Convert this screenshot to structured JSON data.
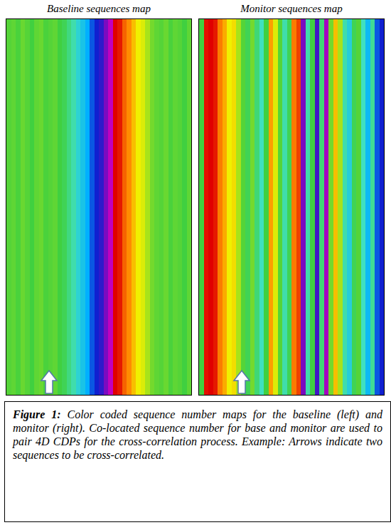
{
  "chart_data": [
    {
      "type": "heatmap",
      "title": "Baseline sequences map",
      "tick_labels": false,
      "zlim": [
        0,
        100
      ],
      "cells": [
        48,
        47,
        49,
        46,
        48,
        50,
        47,
        46,
        49,
        48,
        47,
        50,
        52,
        56,
        60,
        65,
        68,
        72,
        80,
        85,
        88,
        95,
        100,
        0,
        3,
        12,
        17,
        25,
        33,
        35,
        40,
        45,
        47,
        48,
        46,
        49,
        47,
        48,
        50,
        47
      ]
    },
    {
      "type": "heatmap",
      "title": "Monitor sequences map",
      "tick_labels": false,
      "zlim": [
        0,
        100
      ],
      "cells": [
        50,
        2,
        0,
        3,
        15,
        22,
        33,
        30,
        40,
        48,
        52,
        45,
        55,
        62,
        50,
        20,
        35,
        48,
        60,
        52,
        15,
        8,
        95,
        60,
        50,
        90,
        55,
        98,
        45,
        25,
        40,
        60,
        66,
        52,
        48,
        62,
        70,
        58,
        80,
        85
      ]
    }
  ],
  "caption": {
    "label": "Figure 1:",
    "text": "Color coded sequence number maps for the baseline (left) and monitor (right). Co-located sequence number for base and monitor are used to pair 4D CDPs for the cross-correlation process. Example: Arrows indicate two sequences to be cross-correlated."
  }
}
